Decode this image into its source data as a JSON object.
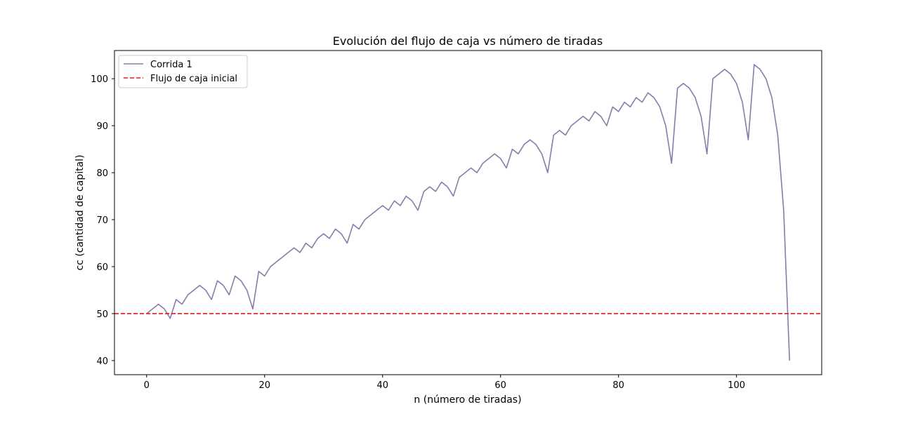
{
  "chart_data": {
    "type": "line",
    "title": "Evolución del flujo de caja vs número de tiradas",
    "xlabel": "n (número de tiradas)",
    "ylabel": "cc (cantidad de capital)",
    "xlim": [
      -5.45,
      114.45
    ],
    "ylim": [
      37,
      106
    ],
    "xticks": [
      0,
      20,
      40,
      60,
      80,
      100
    ],
    "yticks": [
      40,
      50,
      60,
      70,
      80,
      90,
      100
    ],
    "grid": false,
    "legend_position": "top-left",
    "series": [
      {
        "name": "Corrida 1",
        "style": "solid",
        "color": "#8c7aa9",
        "x_start": 0,
        "values": [
          50,
          51,
          52,
          51,
          49,
          53,
          52,
          54,
          55,
          56,
          55,
          53,
          57,
          56,
          54,
          58,
          57,
          55,
          51,
          59,
          58,
          60,
          61,
          62,
          63,
          64,
          63,
          65,
          64,
          66,
          67,
          66,
          68,
          67,
          65,
          69,
          68,
          70,
          71,
          72,
          73,
          72,
          74,
          73,
          75,
          74,
          72,
          76,
          77,
          76,
          78,
          77,
          75,
          79,
          80,
          81,
          80,
          82,
          83,
          84,
          83,
          81,
          85,
          84,
          86,
          87,
          86,
          84,
          80,
          88,
          89,
          88,
          90,
          91,
          92,
          91,
          93,
          92,
          90,
          94,
          93,
          95,
          94,
          96,
          95,
          97,
          96,
          94,
          90,
          82,
          98,
          99,
          98,
          96,
          92,
          84,
          100,
          101,
          102,
          101,
          99,
          95,
          87,
          103,
          102,
          100,
          96,
          88,
          72,
          40
        ]
      },
      {
        "name": "Flujo de caja inicial",
        "style": "dashed",
        "color": "#e41a1c",
        "hline": 50
      }
    ]
  }
}
